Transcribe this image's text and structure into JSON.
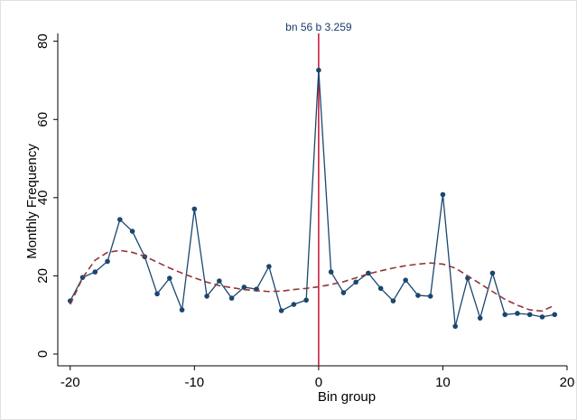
{
  "chart_data": {
    "type": "line",
    "xlabel": "Bin group",
    "ylabel": "Monthly Frequency",
    "annotation": {
      "text": "bn 56 b 3.259",
      "x": 0,
      "color": "#c8102e",
      "text_color": "#1a3a6e"
    },
    "xlim": [
      -21,
      20
    ],
    "ylim": [
      -3,
      82
    ],
    "xticks": [
      -20,
      -10,
      0,
      10,
      20
    ],
    "yticks": [
      0,
      20,
      40,
      60,
      80
    ],
    "series": [
      {
        "color": "#1a476f",
        "style": "solid-markers",
        "x": [
          -20,
          -19,
          -18,
          -17,
          -16,
          -15,
          -14,
          -13,
          -12,
          -11,
          -10,
          -9,
          -8,
          -7,
          -6,
          -5,
          -4,
          -3,
          -2,
          -1,
          0,
          1,
          2,
          3,
          4,
          5,
          6,
          7,
          8,
          9,
          10,
          11,
          12,
          13,
          14,
          15,
          16,
          17,
          18,
          19
        ],
        "values": [
          13.6,
          19.6,
          21,
          23.7,
          34.4,
          31.4,
          24.9,
          15.4,
          19.4,
          11.3,
          37.1,
          14.8,
          18.7,
          14.3,
          17.1,
          16.6,
          22.4,
          11.1,
          12.7,
          13.8,
          72.6,
          21,
          15.7,
          18.4,
          20.7,
          16.8,
          13.6,
          18.9,
          15,
          14.8,
          40.8,
          7.1,
          19.4,
          9.2,
          20.7,
          10.1,
          10.4,
          10.1,
          9.5,
          10.1
        ]
      },
      {
        "color": "#90353b",
        "style": "dashed",
        "x": [
          -20,
          -19,
          -18,
          -17,
          -16,
          -15,
          -14,
          -13,
          -12,
          -11,
          -10,
          -9,
          -8,
          -7,
          -6,
          -5,
          -4,
          -3,
          -2,
          -1,
          0,
          1,
          2,
          3,
          4,
          5,
          6,
          7,
          8,
          9,
          10,
          11,
          12,
          13,
          14,
          15,
          16,
          17,
          18,
          19
        ],
        "values": [
          12.7,
          19.5,
          24,
          26,
          26.5,
          26,
          25,
          23.5,
          22,
          20.7,
          19.5,
          18.4,
          17.5,
          17,
          16.5,
          16.2,
          16,
          16.1,
          16.5,
          16.8,
          17.2,
          17.8,
          18.5,
          19.5,
          20.5,
          21.3,
          22,
          22.6,
          23,
          23.3,
          23,
          22,
          20,
          18,
          16,
          14,
          12.5,
          11.3,
          11,
          12.5
        ]
      }
    ]
  }
}
